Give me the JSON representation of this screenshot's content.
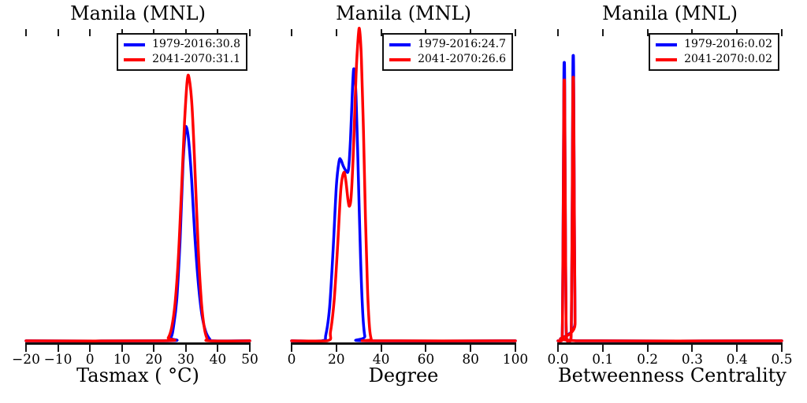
{
  "figure": {
    "background": "#ffffff",
    "axis_color": "#111111",
    "text_color": "#000000"
  },
  "chart_data": [
    {
      "type": "line",
      "subtype": "kde-density",
      "title": "Manila (MNL)",
      "xlabel": "Tasmax ( °C)",
      "ylabel": "",
      "xlim": [
        -20,
        50
      ],
      "xticks": [
        -20,
        -10,
        0,
        10,
        20,
        30,
        40,
        50
      ],
      "xtick_labels": [
        "−20",
        "−10",
        "0",
        "10",
        "20",
        "30",
        "40",
        "50"
      ],
      "grid": false,
      "yticks": "none",
      "legend_position": "upper right",
      "series": [
        {
          "name": "1979-2016:30.8",
          "mean": 30.8,
          "color": "#0000ff",
          "points": [
            [
              -20,
              0
            ],
            [
              23.5,
              0
            ],
            [
              25.3,
              0.01
            ],
            [
              26.2,
              0.05
            ],
            [
              27.2,
              0.14
            ],
            [
              28.2,
              0.33
            ],
            [
              29.1,
              0.57
            ],
            [
              29.8,
              0.675
            ],
            [
              30.2,
              0.69
            ],
            [
              30.9,
              0.645
            ],
            [
              31.8,
              0.52
            ],
            [
              32.8,
              0.34
            ],
            [
              33.9,
              0.185
            ],
            [
              35,
              0.085
            ],
            [
              36.2,
              0.03
            ],
            [
              37.5,
              0.005
            ],
            [
              38.5,
              0
            ],
            [
              50,
              0
            ]
          ]
        },
        {
          "name": "2041-2070:31.1",
          "mean": 31.1,
          "color": "#ff0000",
          "points": [
            [
              -20,
              0
            ],
            [
              23,
              0
            ],
            [
              24.5,
              0.01
            ],
            [
              25.6,
              0.045
            ],
            [
              26.6,
              0.12
            ],
            [
              27.6,
              0.26
            ],
            [
              28.6,
              0.48
            ],
            [
              29.6,
              0.71
            ],
            [
              30.4,
              0.84
            ],
            [
              31,
              0.85
            ],
            [
              31.9,
              0.76
            ],
            [
              32.9,
              0.54
            ],
            [
              33.9,
              0.29
            ],
            [
              34.9,
              0.12
            ],
            [
              35.8,
              0.04
            ],
            [
              36.6,
              0.008
            ],
            [
              37.4,
              0
            ],
            [
              50,
              0
            ]
          ]
        }
      ]
    },
    {
      "type": "line",
      "subtype": "kde-density",
      "title": "Manila (MNL)",
      "xlabel": "Degree",
      "ylabel": "",
      "xlim": [
        0,
        100
      ],
      "xticks": [
        0,
        20,
        40,
        60,
        80,
        100
      ],
      "xtick_labels": [
        "0",
        "20",
        "40",
        "60",
        "80",
        "100"
      ],
      "grid": false,
      "yticks": "none",
      "legend_position": "upper right",
      "series": [
        {
          "name": "1979-2016:24.7",
          "mean": 24.7,
          "color": "#0000ff",
          "points": [
            [
              0,
              0
            ],
            [
              13.5,
              0
            ],
            [
              15.3,
              0.02
            ],
            [
              17,
              0.11
            ],
            [
              18.6,
              0.3
            ],
            [
              20,
              0.5
            ],
            [
              21.2,
              0.58
            ],
            [
              22,
              0.585
            ],
            [
              23.1,
              0.565
            ],
            [
              24.3,
              0.55
            ],
            [
              25.4,
              0.553
            ],
            [
              26.3,
              0.65
            ],
            [
              27.3,
              0.83
            ],
            [
              27.9,
              0.878
            ],
            [
              28.8,
              0.79
            ],
            [
              29.8,
              0.54
            ],
            [
              30.8,
              0.27
            ],
            [
              31.8,
              0.09
            ],
            [
              32.7,
              0.015
            ],
            [
              33.8,
              0
            ],
            [
              100,
              0
            ]
          ]
        },
        {
          "name": "2041-2070:26.6",
          "mean": 26.6,
          "color": "#ff0000",
          "points": [
            [
              0,
              0
            ],
            [
              15.8,
              0
            ],
            [
              17.4,
              0.03
            ],
            [
              19,
              0.13
            ],
            [
              20.6,
              0.31
            ],
            [
              22,
              0.49
            ],
            [
              23.3,
              0.544
            ],
            [
              24.2,
              0.52
            ],
            [
              25.2,
              0.455
            ],
            [
              25.9,
              0.436
            ],
            [
              26.7,
              0.475
            ],
            [
              27.7,
              0.63
            ],
            [
              28.8,
              0.86
            ],
            [
              29.8,
              0.985
            ],
            [
              30.4,
              1.005
            ],
            [
              31.2,
              0.91
            ],
            [
              32.1,
              0.68
            ],
            [
              33,
              0.4
            ],
            [
              33.9,
              0.17
            ],
            [
              34.8,
              0.045
            ],
            [
              35.6,
              0.005
            ],
            [
              36.4,
              0
            ],
            [
              100,
              0
            ]
          ]
        }
      ]
    },
    {
      "type": "line",
      "subtype": "kde-density",
      "title": "Manila (MNL)",
      "xlabel": "Betweenness Centrality",
      "ylabel": "",
      "xlim": [
        0,
        0.5
      ],
      "xticks": [
        0,
        0.1,
        0.2,
        0.3,
        0.4,
        0.5
      ],
      "xtick_labels": [
        "0.0",
        "0.1",
        "0.2",
        "0.3",
        "0.4",
        "0.5"
      ],
      "grid": false,
      "yticks": "none",
      "legend_position": "upper right",
      "series": [
        {
          "name": "1979-2016:0.02",
          "mean": 0.02,
          "color": "#0000ff",
          "points": [
            [
              0,
              0
            ],
            [
              0.008,
              0
            ],
            [
              0.01,
              0.06
            ],
            [
              0.0118,
              0.45
            ],
            [
              0.0132,
              0.85
            ],
            [
              0.0141,
              0.894
            ],
            [
              0.015,
              0.85
            ],
            [
              0.0164,
              0.45
            ],
            [
              0.0182,
              0.06
            ],
            [
              0.02,
              0
            ],
            [
              0.024,
              0
            ],
            [
              0.0282,
              0
            ],
            [
              0.03,
              0.06
            ],
            [
              0.0318,
              0.46
            ],
            [
              0.0332,
              0.87
            ],
            [
              0.0341,
              0.917
            ],
            [
              0.035,
              0.87
            ],
            [
              0.0364,
              0.46
            ],
            [
              0.0382,
              0.06
            ],
            [
              0.04,
              0
            ],
            [
              0.5,
              0
            ]
          ]
        },
        {
          "name": "2041-2070:0.02",
          "mean": 0.02,
          "color": "#ff0000",
          "points": [
            [
              0,
              0
            ],
            [
              0.008,
              0
            ],
            [
              0.01,
              0.055
            ],
            [
              0.0118,
              0.42
            ],
            [
              0.0132,
              0.8
            ],
            [
              0.0141,
              0.835
            ],
            [
              0.015,
              0.8
            ],
            [
              0.0164,
              0.42
            ],
            [
              0.0182,
              0.055
            ],
            [
              0.02,
              0
            ],
            [
              0.024,
              0
            ],
            [
              0.0282,
              0
            ],
            [
              0.03,
              0.055
            ],
            [
              0.0318,
              0.43
            ],
            [
              0.0332,
              0.81
            ],
            [
              0.0341,
              0.843
            ],
            [
              0.035,
              0.81
            ],
            [
              0.0364,
              0.43
            ],
            [
              0.0382,
              0.055
            ],
            [
              0.04,
              0
            ],
            [
              0.5,
              0
            ]
          ]
        }
      ]
    }
  ]
}
